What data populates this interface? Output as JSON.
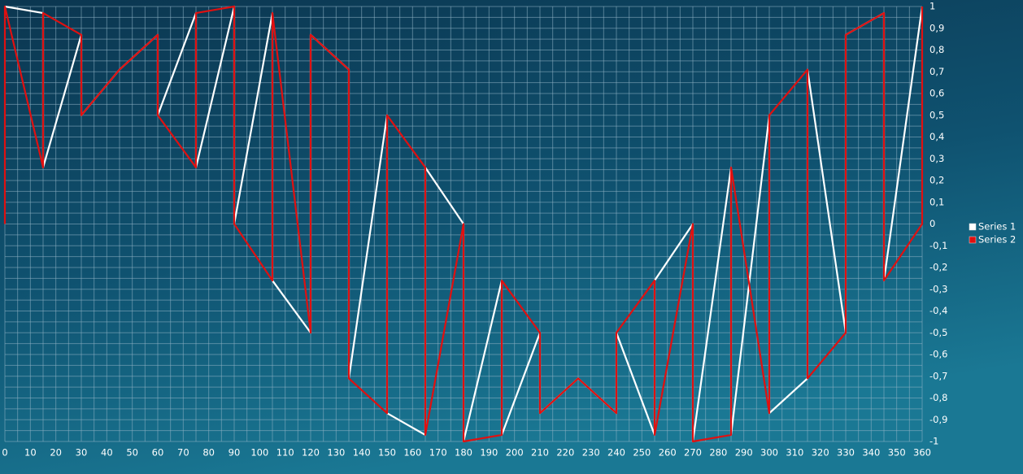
{
  "chart_data": {
    "type": "line",
    "grid": true,
    "legend": "right",
    "xlim": [
      0,
      360
    ],
    "xticks": [
      0,
      10,
      20,
      30,
      40,
      50,
      60,
      70,
      80,
      90,
      100,
      110,
      120,
      130,
      140,
      150,
      160,
      170,
      180,
      190,
      200,
      210,
      220,
      230,
      240,
      250,
      260,
      270,
      280,
      290,
      300,
      310,
      320,
      330,
      340,
      350,
      360
    ],
    "ylim": [
      -1,
      1
    ],
    "yticks": [
      -1,
      {
        "value": -0.9,
        "label": "-0,9"
      },
      {
        "value": -0.8,
        "label": "-0,8"
      },
      {
        "value": -0.7,
        "label": "-0,7"
      },
      {
        "value": -0.6,
        "label": "-0,6"
      },
      {
        "value": -0.5,
        "label": "-0,5"
      },
      {
        "value": -0.4,
        "label": "-0,4"
      },
      {
        "value": -0.3,
        "label": "-0,3"
      },
      {
        "value": -0.2,
        "label": "-0,2"
      },
      {
        "value": -0.1,
        "label": "-0,1"
      },
      0,
      {
        "value": 0.1,
        "label": "0,1"
      },
      {
        "value": 0.2,
        "label": "0,2"
      },
      {
        "value": 0.3,
        "label": "0,3"
      },
      {
        "value": 0.4,
        "label": "0,4"
      },
      {
        "value": 0.5,
        "label": "0,5"
      },
      {
        "value": 0.6,
        "label": "0,6"
      },
      {
        "value": 0.7,
        "label": "0,7"
      },
      {
        "value": 0.8,
        "label": "0,8"
      },
      {
        "value": 0.9,
        "label": "0,9"
      },
      1
    ],
    "series": [
      {
        "name": "Series 1",
        "color": "#ffffff",
        "x": [
          0,
          15,
          15,
          30,
          30,
          45,
          60,
          60,
          75,
          75,
          90,
          90,
          105,
          105,
          120,
          120,
          135,
          135,
          150,
          150,
          165,
          165,
          180,
          180,
          195,
          195,
          210,
          210,
          225,
          240,
          240,
          255,
          255,
          270,
          270,
          285,
          285,
          300,
          300,
          315,
          315,
          330,
          330,
          345,
          345,
          360
        ],
        "values": [
          1,
          0.97,
          0.26,
          0.87,
          0.5,
          0.71,
          0.87,
          0.5,
          0.97,
          0.26,
          1,
          0,
          0.97,
          -0.26,
          -0.5,
          0.87,
          0.71,
          -0.71,
          0.5,
          -0.87,
          -0.97,
          0.26,
          0,
          -1,
          -0.26,
          -0.97,
          -0.5,
          -0.87,
          -0.71,
          -0.87,
          -0.5,
          -0.97,
          -0.26,
          0,
          -1,
          0.26,
          -0.97,
          0.5,
          -0.87,
          -0.71,
          0.71,
          -0.5,
          0.87,
          0.97,
          -0.26,
          1
        ]
      },
      {
        "name": "Series 2",
        "color": "#e01010",
        "x": [
          0,
          0,
          15,
          15,
          30,
          30,
          45,
          60,
          60,
          75,
          75,
          90,
          90,
          105,
          105,
          120,
          120,
          135,
          135,
          150,
          150,
          165,
          165,
          180,
          180,
          195,
          195,
          210,
          210,
          225,
          240,
          240,
          255,
          255,
          270,
          270,
          285,
          285,
          300,
          300,
          315,
          315,
          330,
          330,
          345,
          345,
          360,
          360
        ],
        "values": [
          0,
          1,
          0.26,
          0.97,
          0.87,
          0.5,
          0.71,
          0.87,
          0.5,
          0.26,
          0.97,
          1,
          0,
          -0.26,
          0.97,
          -0.5,
          0.87,
          0.71,
          -0.71,
          -0.87,
          0.5,
          0.26,
          -0.97,
          0,
          -1,
          -0.97,
          -0.26,
          -0.5,
          -0.87,
          -0.71,
          -0.87,
          -0.5,
          -0.26,
          -0.97,
          0,
          -1,
          -0.97,
          0.26,
          -0.87,
          0.5,
          0.71,
          -0.71,
          -0.5,
          0.87,
          0.97,
          -0.26,
          0,
          1
        ]
      }
    ]
  }
}
